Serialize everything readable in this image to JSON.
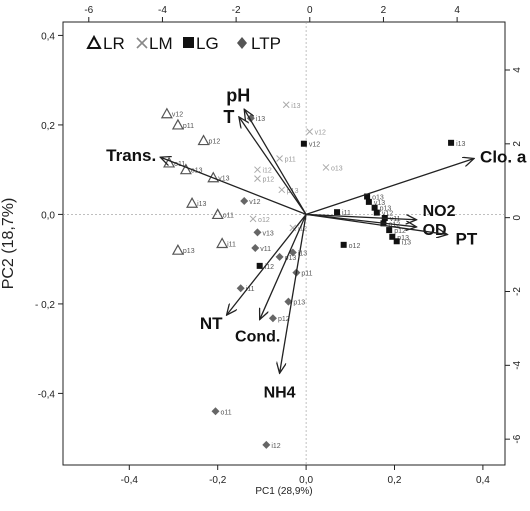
{
  "chart_data": {
    "type": "scatter",
    "subtype": "pca-biplot",
    "xlabel": "PC1  (28,9%)",
    "ylabel": "PC2 (18,7%)",
    "xlim": [
      -0.55,
      0.45
    ],
    "ylim": [
      -0.56,
      0.43
    ],
    "x_ticks": [
      "-0,4",
      "-0,2",
      "0,0",
      "0,2",
      "0,4"
    ],
    "y_ticks": [
      "0,4",
      "0,2",
      "0,0",
      "- 0,2",
      "-0,4"
    ],
    "x_tick_values": [
      -0.4,
      -0.2,
      0.0,
      0.2,
      0.4
    ],
    "y_tick_values": [
      0.4,
      0.2,
      0.0,
      -0.2,
      -0.4
    ],
    "top_axis": {
      "ticks": [
        "-6",
        "-4",
        "-2",
        "0",
        "2",
        "4"
      ],
      "values": [
        -6,
        -4,
        -2,
        0,
        2,
        4
      ],
      "lim": [
        -6.7,
        5.3
      ]
    },
    "right_axis": {
      "ticks": [
        "4",
        "2",
        "0",
        "-2",
        "-4",
        "-6"
      ],
      "values": [
        4,
        2,
        0,
        -2,
        -4,
        -6
      ],
      "lim": [
        -6.7,
        5.3
      ]
    },
    "legend": {
      "position": "top-left",
      "entries": [
        {
          "symbol": "triangle",
          "label": "LR"
        },
        {
          "symbol": "cross",
          "label": "LM"
        },
        {
          "symbol": "square",
          "label": "LG"
        },
        {
          "symbol": "diamond",
          "label": "LTP"
        }
      ]
    },
    "groups": [
      {
        "name": "LR",
        "symbol": "triangle",
        "points": [
          {
            "label": "v12",
            "x": -0.315,
            "y": 0.225
          },
          {
            "label": "p11",
            "x": -0.29,
            "y": 0.2
          },
          {
            "label": "p12",
            "x": -0.232,
            "y": 0.165
          },
          {
            "label": "o11",
            "x": -0.31,
            "y": 0.115
          },
          {
            "label": "o13",
            "x": -0.272,
            "y": 0.1
          },
          {
            "label": "v13",
            "x": -0.21,
            "y": 0.082
          },
          {
            "label": "i13",
            "x": -0.258,
            "y": 0.025
          },
          {
            "label": "o11",
            "x": -0.2,
            "y": 0.0
          },
          {
            "label": "p13",
            "x": -0.29,
            "y": -0.08
          },
          {
            "label": "i11",
            "x": -0.19,
            "y": -0.065
          }
        ]
      },
      {
        "name": "LM",
        "symbol": "cross",
        "points": [
          {
            "label": "i13",
            "x": -0.045,
            "y": 0.245
          },
          {
            "label": "v12",
            "x": 0.008,
            "y": 0.185
          },
          {
            "label": "o13",
            "x": 0.045,
            "y": 0.105
          },
          {
            "label": "i12",
            "x": -0.11,
            "y": 0.1
          },
          {
            "label": "p11",
            "x": -0.06,
            "y": 0.125
          },
          {
            "label": "p12",
            "x": -0.11,
            "y": 0.08
          },
          {
            "label": "p13",
            "x": -0.055,
            "y": 0.055
          },
          {
            "label": "o12",
            "x": -0.12,
            "y": -0.01
          },
          {
            "label": "i12",
            "x": -0.03,
            "y": -0.03
          }
        ]
      },
      {
        "name": "LG",
        "symbol": "square",
        "points": [
          {
            "label": "i13",
            "x": 0.328,
            "y": 0.16
          },
          {
            "label": "v12",
            "x": -0.005,
            "y": 0.158
          },
          {
            "label": "o13",
            "x": 0.138,
            "y": 0.04
          },
          {
            "label": "v13",
            "x": 0.142,
            "y": 0.028
          },
          {
            "label": "p13",
            "x": 0.155,
            "y": 0.015
          },
          {
            "label": "v12",
            "x": 0.16,
            "y": 0.004
          },
          {
            "label": "v11",
            "x": 0.178,
            "y": -0.008
          },
          {
            "label": "i11",
            "x": 0.07,
            "y": 0.005
          },
          {
            "label": "o12",
            "x": 0.175,
            "y": -0.02
          },
          {
            "label": "p12",
            "x": 0.188,
            "y": -0.035
          },
          {
            "label": "p13",
            "x": 0.195,
            "y": -0.05
          },
          {
            "label": "i13",
            "x": 0.205,
            "y": -0.06
          },
          {
            "label": "o12",
            "x": 0.085,
            "y": -0.068
          },
          {
            "label": "i12",
            "x": -0.105,
            "y": -0.115
          }
        ]
      },
      {
        "name": "LTP",
        "symbol": "diamond",
        "points": [
          {
            "label": "i13",
            "x": -0.125,
            "y": 0.215
          },
          {
            "label": "v12",
            "x": -0.14,
            "y": 0.03
          },
          {
            "label": "v13",
            "x": -0.11,
            "y": -0.04
          },
          {
            "label": "v11",
            "x": -0.115,
            "y": -0.075
          },
          {
            "label": "o13",
            "x": -0.06,
            "y": -0.095
          },
          {
            "label": "i13",
            "x": -0.03,
            "y": -0.085
          },
          {
            "label": "p11",
            "x": -0.022,
            "y": -0.13
          },
          {
            "label": "i11",
            "x": -0.148,
            "y": -0.165
          },
          {
            "label": "p13",
            "x": -0.04,
            "y": -0.195
          },
          {
            "label": "p12",
            "x": -0.075,
            "y": -0.232
          },
          {
            "label": "o11",
            "x": -0.205,
            "y": -0.44
          },
          {
            "label": "i12",
            "x": -0.09,
            "y": -0.515
          }
        ]
      }
    ],
    "loadings": [
      {
        "label": "pH",
        "x": -0.14,
        "y": 0.235
      },
      {
        "label": "T",
        "x": -0.152,
        "y": 0.218
      },
      {
        "label": "Trans.",
        "x": -0.33,
        "y": 0.128
      },
      {
        "label": "Clo. a",
        "x": 0.38,
        "y": 0.125
      },
      {
        "label": "NO2",
        "x": 0.25,
        "y": -0.012
      },
      {
        "label": "OD",
        "x": 0.25,
        "y": -0.028
      },
      {
        "label": "PT",
        "x": 0.32,
        "y": -0.045
      },
      {
        "label": "NT",
        "x": -0.18,
        "y": -0.225
      },
      {
        "label": "Cond.",
        "x": -0.105,
        "y": -0.235
      },
      {
        "label": "NH4",
        "x": -0.06,
        "y": -0.355
      }
    ]
  }
}
